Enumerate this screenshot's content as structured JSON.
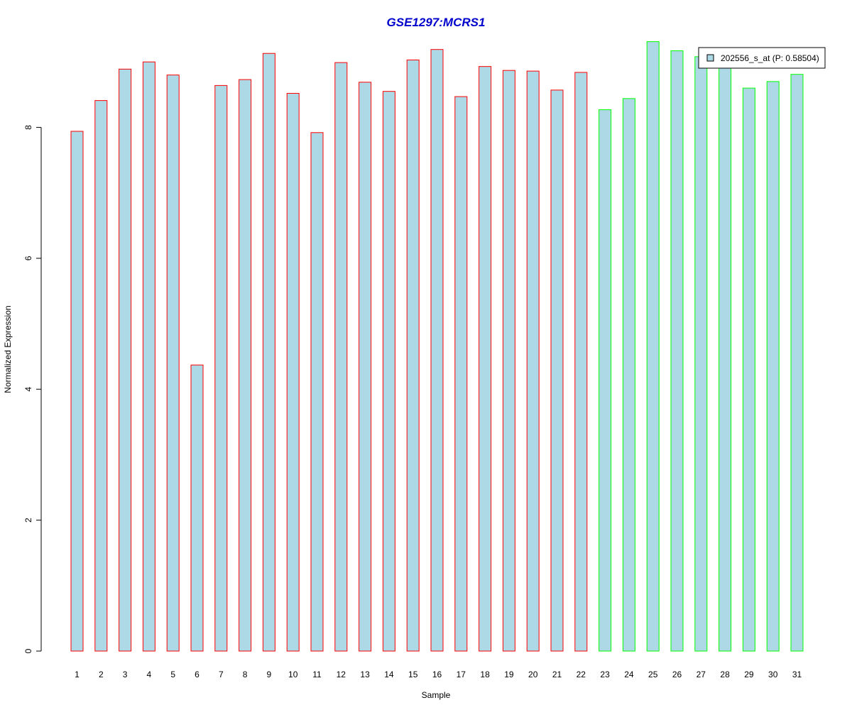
{
  "chart_data": {
    "type": "bar",
    "title": "GSE1297:MCRS1",
    "xlabel": "Sample",
    "ylabel": "Normalized Expression",
    "ylim": [
      0,
      9.3
    ],
    "yticks": [
      0,
      2,
      4,
      6,
      8
    ],
    "categories": [
      "1",
      "2",
      "3",
      "4",
      "5",
      "6",
      "7",
      "8",
      "9",
      "10",
      "11",
      "12",
      "13",
      "14",
      "15",
      "16",
      "17",
      "18",
      "19",
      "20",
      "21",
      "22",
      "23",
      "24",
      "25",
      "26",
      "27",
      "28",
      "29",
      "30",
      "31"
    ],
    "series": [
      {
        "name": "202556_s_at (P: 0.58504)",
        "values": [
          7.94,
          8.41,
          8.89,
          9.0,
          8.8,
          4.37,
          8.64,
          8.73,
          9.13,
          8.52,
          7.92,
          8.99,
          8.69,
          8.55,
          9.03,
          9.19,
          8.47,
          8.93,
          8.87,
          8.86,
          8.57,
          8.84,
          8.27,
          8.44,
          9.31,
          9.17,
          9.08,
          8.94,
          8.6,
          8.7,
          8.81
        ]
      }
    ],
    "groups": [
      {
        "samples": [
          1,
          22
        ],
        "border_color": "#ff0000"
      },
      {
        "samples": [
          23,
          31
        ],
        "border_color": "#00ff00"
      }
    ],
    "fill_color": "#add8e6",
    "title_color": "#0000cd",
    "legend_position": "top-right",
    "grid": false
  }
}
